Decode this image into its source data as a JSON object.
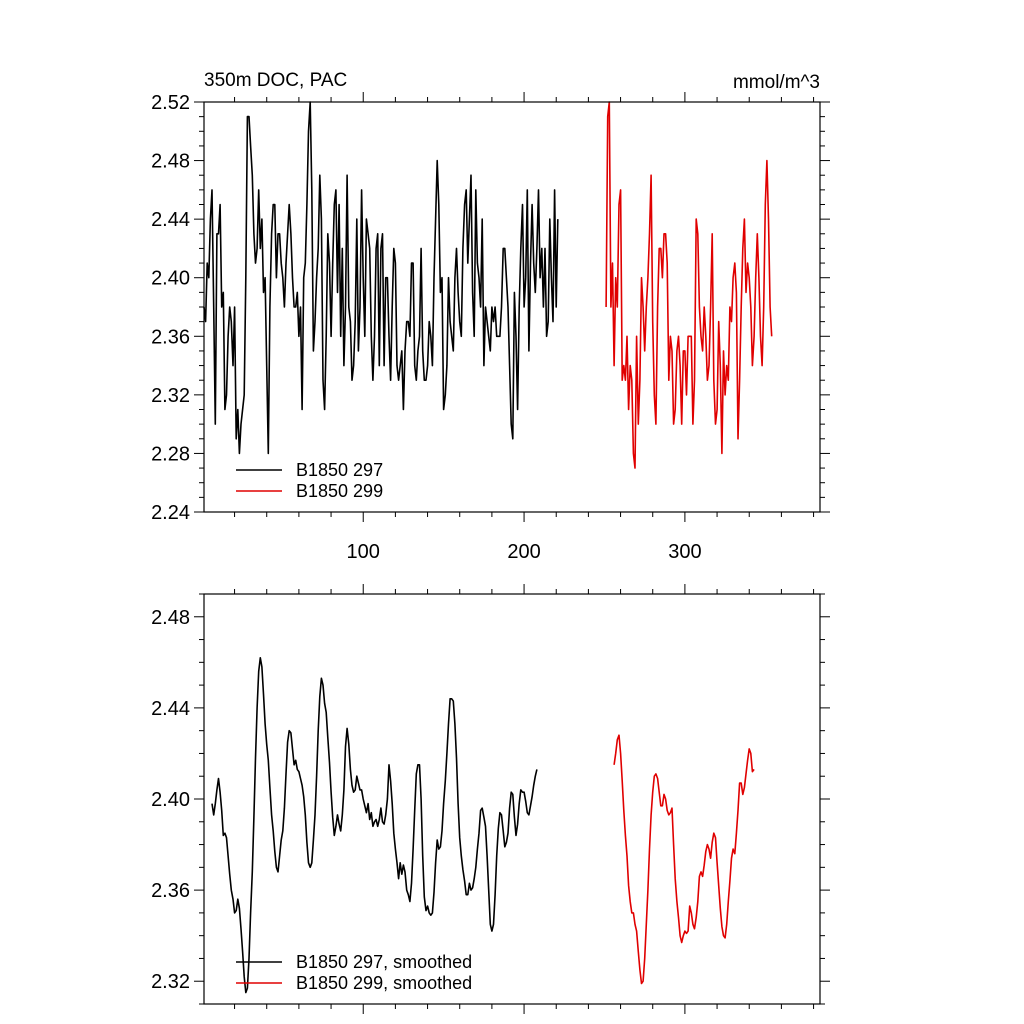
{
  "chart_data": [
    {
      "type": "line",
      "title": "350m DOC, PAC",
      "units": "mmol/m^3",
      "xlim": [
        1,
        384
      ],
      "ylim": [
        2.24,
        2.52
      ],
      "x_ticks": [
        100,
        200,
        300
      ],
      "y_ticks": [
        2.24,
        2.28,
        2.32,
        2.36,
        2.4,
        2.44,
        2.48,
        2.52
      ],
      "y_tick_labels": [
        "2.24",
        "2.28",
        "2.32",
        "2.36",
        "2.40",
        "2.44",
        "2.48",
        "2.52"
      ],
      "x_tick_labels": [
        "100",
        "200",
        "300"
      ],
      "legend_position": "bottom-left",
      "series": [
        {
          "name": "B1850 297",
          "color": "#000000",
          "x_start": 1,
          "values": [
            2.38,
            2.37,
            2.41,
            2.4,
            2.44,
            2.46,
            2.38,
            2.3,
            2.43,
            2.43,
            2.45,
            2.38,
            2.39,
            2.31,
            2.32,
            2.36,
            2.38,
            2.37,
            2.34,
            2.38,
            2.29,
            2.31,
            2.28,
            2.3,
            2.31,
            2.32,
            2.4,
            2.51,
            2.51,
            2.49,
            2.47,
            2.43,
            2.41,
            2.42,
            2.46,
            2.42,
            2.44,
            2.39,
            2.4,
            2.34,
            2.28,
            2.38,
            2.43,
            2.45,
            2.45,
            2.4,
            2.43,
            2.43,
            2.41,
            2.4,
            2.38,
            2.41,
            2.43,
            2.45,
            2.43,
            2.4,
            2.38,
            2.38,
            2.39,
            2.36,
            2.38,
            2.31,
            2.4,
            2.41,
            2.45,
            2.5,
            2.52,
            2.46,
            2.35,
            2.37,
            2.4,
            2.42,
            2.47,
            2.44,
            2.33,
            2.31,
            2.36,
            2.43,
            2.41,
            2.36,
            2.41,
            2.45,
            2.46,
            2.39,
            2.45,
            2.36,
            2.42,
            2.34,
            2.38,
            2.47,
            2.38,
            2.37,
            2.33,
            2.34,
            2.37,
            2.44,
            2.35,
            2.38,
            2.46,
            2.4,
            2.36,
            2.44,
            2.43,
            2.42,
            2.36,
            2.33,
            2.36,
            2.42,
            2.43,
            2.34,
            2.42,
            2.43,
            2.34,
            2.4,
            2.4,
            2.36,
            2.33,
            2.38,
            2.42,
            2.41,
            2.34,
            2.33,
            2.34,
            2.35,
            2.31,
            2.35,
            2.37,
            2.37,
            2.36,
            2.41,
            2.41,
            2.34,
            2.33,
            2.35,
            2.36,
            2.42,
            2.35,
            2.33,
            2.33,
            2.34,
            2.37,
            2.36,
            2.34,
            2.4,
            2.44,
            2.48,
            2.45,
            2.39,
            2.4,
            2.31,
            2.32,
            2.34,
            2.4,
            2.37,
            2.36,
            2.35,
            2.4,
            2.42,
            2.39,
            2.37,
            2.36,
            2.42,
            2.45,
            2.46,
            2.41,
            2.44,
            2.47,
            2.39,
            2.36,
            2.46,
            2.41,
            2.4,
            2.38,
            2.44,
            2.34,
            2.38,
            2.37,
            2.36,
            2.35,
            2.38,
            2.37,
            2.38,
            2.36,
            2.36,
            2.36,
            2.38,
            2.42,
            2.42,
            2.4,
            2.38,
            2.34,
            2.3,
            2.29,
            2.39,
            2.36,
            2.31,
            2.38,
            2.42,
            2.45,
            2.38,
            2.4,
            2.46,
            2.35,
            2.41,
            2.45,
            2.41,
            2.39,
            2.42,
            2.46,
            2.4,
            2.42,
            2.38,
            2.42,
            2.36,
            2.37,
            2.44,
            2.4,
            2.37,
            2.46,
            2.38,
            2.44
          ]
        },
        {
          "name": "B1850 299",
          "color": "#e00000",
          "x_start": 251,
          "values": [
            2.38,
            2.51,
            2.52,
            2.38,
            2.41,
            2.34,
            2.4,
            2.38,
            2.45,
            2.46,
            2.33,
            2.34,
            2.33,
            2.36,
            2.31,
            2.34,
            2.33,
            2.28,
            2.27,
            2.36,
            2.3,
            2.33,
            2.4,
            2.38,
            2.35,
            2.38,
            2.4,
            2.43,
            2.47,
            2.37,
            2.32,
            2.3,
            2.38,
            2.42,
            2.42,
            2.4,
            2.43,
            2.43,
            2.41,
            2.33,
            2.36,
            2.35,
            2.3,
            2.31,
            2.35,
            2.36,
            2.34,
            2.3,
            2.35,
            2.35,
            2.32,
            2.36,
            2.36,
            2.36,
            2.3,
            2.33,
            2.44,
            2.43,
            2.38,
            2.36,
            2.35,
            2.38,
            2.36,
            2.33,
            2.34,
            2.38,
            2.43,
            2.33,
            2.3,
            2.31,
            2.37,
            2.34,
            2.28,
            2.35,
            2.32,
            2.34,
            2.33,
            2.38,
            2.37,
            2.4,
            2.41,
            2.39,
            2.29,
            2.33,
            2.38,
            2.42,
            2.44,
            2.39,
            2.41,
            2.4,
            2.38,
            2.34,
            2.36,
            2.4,
            2.43,
            2.4,
            2.36,
            2.34,
            2.38,
            2.45,
            2.48,
            2.44,
            2.38,
            2.36
          ]
        }
      ]
    },
    {
      "type": "line",
      "xlim": [
        1,
        384
      ],
      "ylim": [
        2.31,
        2.49
      ],
      "y_ticks": [
        2.32,
        2.36,
        2.4,
        2.44,
        2.48
      ],
      "y_tick_labels": [
        "2.32",
        "2.36",
        "2.40",
        "2.44",
        "2.48"
      ],
      "legend_position": "bottom-left",
      "series": [
        {
          "name": "B1850 297, smoothed",
          "color": "#000000",
          "x_start": 6,
          "values": [
            2.398,
            2.393,
            2.398,
            2.404,
            2.409,
            2.403,
            2.395,
            2.384,
            2.385,
            2.383,
            2.375,
            2.367,
            2.36,
            2.356,
            2.35,
            2.351,
            2.356,
            2.352,
            2.343,
            2.333,
            2.322,
            2.315,
            2.317,
            2.33,
            2.35,
            2.368,
            2.392,
            2.418,
            2.44,
            2.456,
            2.462,
            2.458,
            2.446,
            2.433,
            2.424,
            2.417,
            2.405,
            2.393,
            2.386,
            2.377,
            2.37,
            2.368,
            2.375,
            2.382,
            2.386,
            2.396,
            2.411,
            2.425,
            2.43,
            2.429,
            2.422,
            2.415,
            2.417,
            2.413,
            2.412,
            2.409,
            2.406,
            2.401,
            2.393,
            2.381,
            2.372,
            2.37,
            2.372,
            2.382,
            2.393,
            2.41,
            2.43,
            2.445,
            2.453,
            2.45,
            2.442,
            2.438,
            2.427,
            2.416,
            2.403,
            2.392,
            2.384,
            2.388,
            2.393,
            2.389,
            2.386,
            2.393,
            2.404,
            2.423,
            2.431,
            2.424,
            2.413,
            2.406,
            2.403,
            2.404,
            2.41,
            2.407,
            2.404,
            2.404,
            2.4,
            2.397,
            2.394,
            2.398,
            2.391,
            2.394,
            2.388,
            2.39,
            2.391,
            2.388,
            2.391,
            2.396,
            2.39,
            2.389,
            2.393,
            2.4,
            2.415,
            2.408,
            2.398,
            2.385,
            2.378,
            2.372,
            2.365,
            2.372,
            2.367,
            2.371,
            2.368,
            2.36,
            2.358,
            2.355,
            2.363,
            2.378,
            2.395,
            2.411,
            2.415,
            2.415,
            2.4,
            2.375,
            2.357,
            2.351,
            2.353,
            2.35,
            2.349,
            2.35,
            2.359,
            2.372,
            2.382,
            2.378,
            2.379,
            2.386,
            2.398,
            2.408,
            2.42,
            2.433,
            2.444,
            2.444,
            2.443,
            2.433,
            2.418,
            2.398,
            2.383,
            2.375,
            2.369,
            2.364,
            2.358,
            2.358,
            2.363,
            2.36,
            2.361,
            2.365,
            2.37,
            2.378,
            2.385,
            2.395,
            2.396,
            2.392,
            2.388,
            2.375,
            2.36,
            2.345,
            2.342,
            2.345,
            2.358,
            2.375,
            2.387,
            2.394,
            2.393,
            2.386,
            2.379,
            2.381,
            2.385,
            2.396,
            2.403,
            2.402,
            2.392,
            2.384,
            2.389,
            2.398,
            2.404,
            2.403,
            2.403,
            2.399,
            2.394,
            2.393,
            2.397,
            2.401,
            2.406,
            2.41,
            2.413
          ]
        },
        {
          "name": "B1850 299, smoothed",
          "color": "#e00000",
          "x_start": 256,
          "values": [
            2.415,
            2.42,
            2.426,
            2.428,
            2.42,
            2.408,
            2.395,
            2.384,
            2.375,
            2.362,
            2.355,
            2.35,
            2.35,
            2.345,
            2.342,
            2.333,
            2.325,
            2.319,
            2.32,
            2.33,
            2.345,
            2.36,
            2.378,
            2.393,
            2.403,
            2.41,
            2.411,
            2.409,
            2.403,
            2.397,
            2.397,
            2.402,
            2.4,
            2.395,
            2.393,
            2.394,
            2.396,
            2.38,
            2.365,
            2.355,
            2.348,
            2.34,
            2.337,
            2.34,
            2.342,
            2.341,
            2.342,
            2.353,
            2.35,
            2.345,
            2.343,
            2.348,
            2.355,
            2.366,
            2.368,
            2.366,
            2.371,
            2.377,
            2.38,
            2.378,
            2.374,
            2.381,
            2.385,
            2.383,
            2.372,
            2.362,
            2.352,
            2.344,
            2.34,
            2.339,
            2.345,
            2.355,
            2.364,
            2.374,
            2.378,
            2.376,
            2.385,
            2.395,
            2.407,
            2.407,
            2.402,
            2.405,
            2.411,
            2.417,
            2.422,
            2.42,
            2.412,
            2.413
          ]
        }
      ]
    }
  ]
}
